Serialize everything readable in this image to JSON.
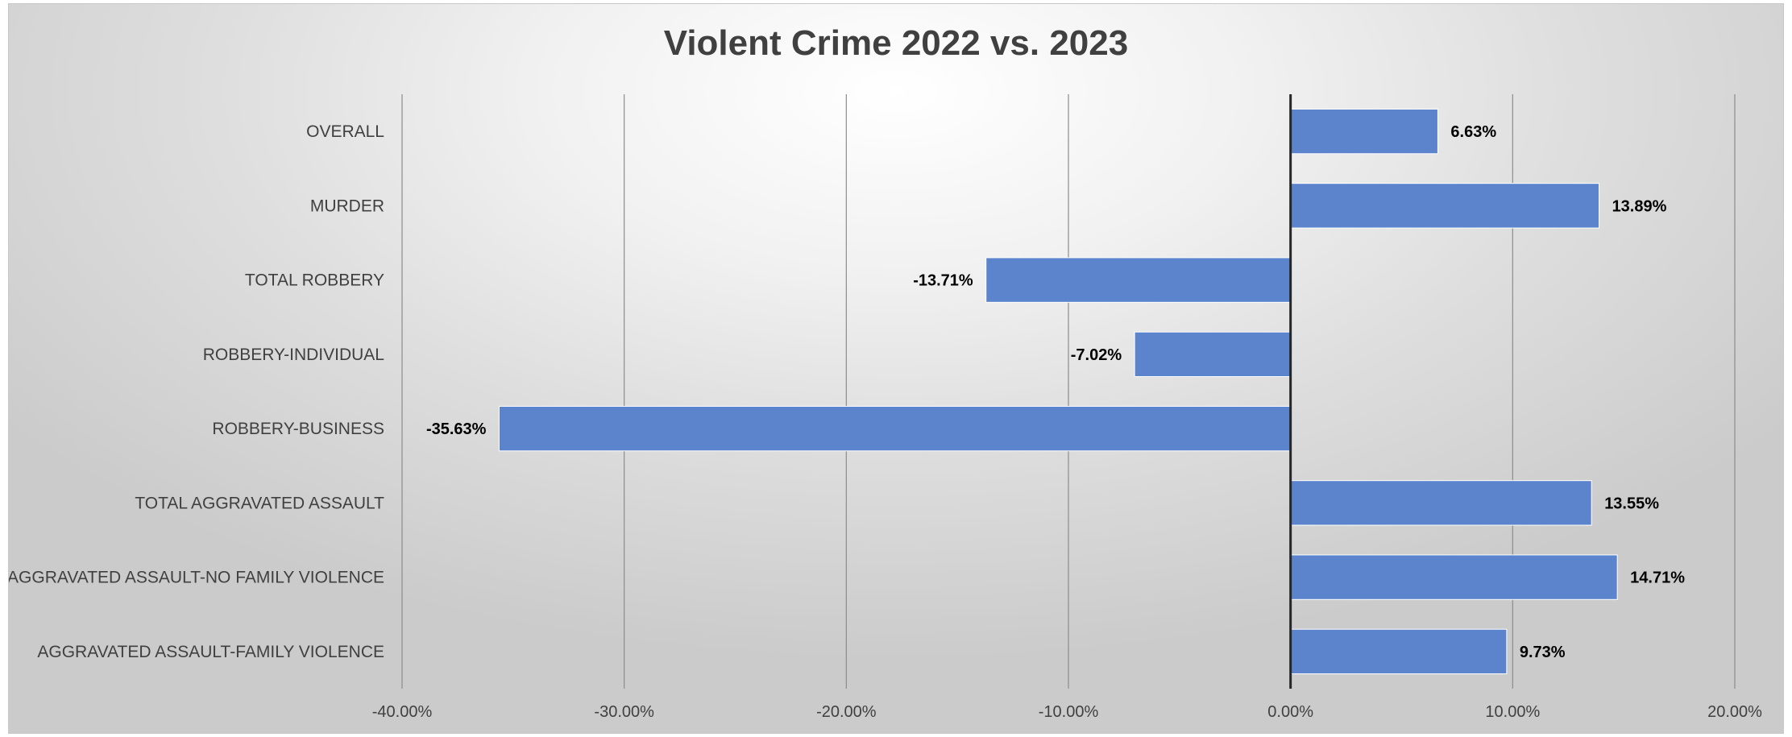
{
  "chart_data": {
    "type": "bar",
    "orientation": "horizontal",
    "title": "Violent Crime 2022 vs. 2023",
    "xlabel": "",
    "ylabel": "",
    "categories": [
      "OVERALL",
      "MURDER",
      "TOTAL ROBBERY",
      "ROBBERY-INDIVIDUAL",
      "ROBBERY-BUSINESS",
      "TOTAL AGGRAVATED ASSAULT",
      "AGGRAVATED ASSAULT-NO FAMILY VIOLENCE",
      "AGGRAVATED ASSAULT-FAMILY VIOLENCE"
    ],
    "values": [
      6.63,
      13.89,
      -13.71,
      -7.02,
      -35.63,
      13.55,
      14.71,
      9.73
    ],
    "data_labels": [
      "6.63%",
      "13.89%",
      "-13.71%",
      "-7.02%",
      "-35.63%",
      "13.55%",
      "14.71%",
      "9.73%"
    ],
    "xlim": [
      -40,
      20
    ],
    "x_ticks": [
      -40,
      -30,
      -20,
      -10,
      0,
      10,
      20
    ],
    "x_tick_labels": [
      "-40.00%",
      "-30.00%",
      "-20.00%",
      "-10.00%",
      "0.00%",
      "10.00%",
      "20.00%"
    ],
    "grid": true,
    "legend": "none",
    "bar_color": "#5b84cc",
    "bar_edge_color": "#ffffff",
    "grid_color": "#8c8c8c",
    "zero_line_color": "#262626"
  }
}
